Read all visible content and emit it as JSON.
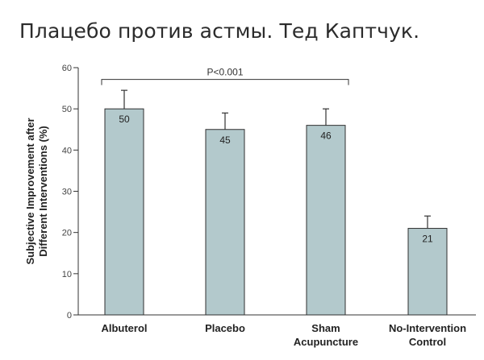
{
  "page": {
    "title": "Плацебо против астмы. Тед Каптчук."
  },
  "chart_data": {
    "type": "bar",
    "categories": [
      [
        "Albuterol"
      ],
      [
        "Placebo"
      ],
      [
        "Sham",
        "Acupuncture"
      ],
      [
        "No-Intervention",
        "Control"
      ]
    ],
    "values": [
      50,
      45,
      46,
      21
    ],
    "data_labels": [
      "50",
      "45",
      "46",
      "21"
    ],
    "error_upper": [
      54.5,
      49,
      50,
      24
    ],
    "ylabel_lines": [
      "Subjective Improvement after",
      "Different Interventions (%)"
    ],
    "xlabel": "",
    "ylim": [
      0,
      60
    ],
    "yticks": [
      0,
      10,
      20,
      30,
      40,
      50,
      60
    ],
    "significance": {
      "label": "P<0.001",
      "from": 0,
      "to": 2,
      "level": 58.5
    },
    "grid": false,
    "bar_color": "#b3c9cc",
    "bar_edge_color": "#2f2f2f"
  }
}
